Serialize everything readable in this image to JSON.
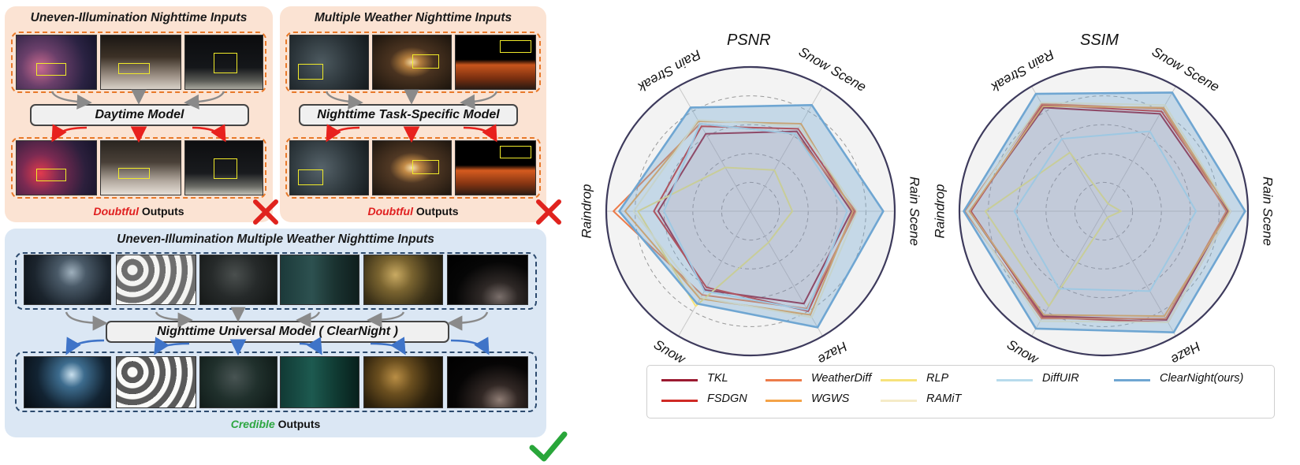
{
  "panels": {
    "uneven": {
      "title": "Uneven-Illumination Nighttime Inputs",
      "model": "Daytime Model",
      "outputs_em": "Doubtful",
      "outputs_rest": "Outputs"
    },
    "weather": {
      "title": "Multiple Weather Nighttime Inputs",
      "model": "Nighttime Task-Specific Model",
      "outputs_em": "Doubtful",
      "outputs_rest": "Outputs"
    },
    "universal": {
      "title": "Uneven-Illumination Multiple Weather Nighttime Inputs",
      "model": "Nighttime Universal Model ( ClearNight )",
      "outputs_em": "Credible",
      "outputs_rest": "Outputs"
    }
  },
  "colors": {
    "orange_panel": "#fbe3d3",
    "blue_panel": "#dbe7f4",
    "orange_dash": "#e8792a",
    "blue_dash": "#2c4a6e",
    "red_arrow": "#e8211d",
    "blue_arrow": "#3f74c8",
    "gray_arrow": "#8a8a8a",
    "cross": "#e0231e",
    "check": "#29a63a",
    "doubtful": "#e02020",
    "credible": "#2ca640"
  },
  "status_icons": [
    "cross-icon",
    "cross-icon",
    "check-icon"
  ],
  "chart_data": [
    {
      "type": "radar",
      "title": "PSNR",
      "axes": [
        "Rain Scene",
        "Snow Scene",
        "Rain Streak",
        "Raindrop",
        "Snow",
        "Haze"
      ],
      "grid": "dashed concentric circles",
      "series": [
        {
          "name": "TKL",
          "values": [
            0.7,
            0.64,
            0.62,
            0.64,
            0.63,
            0.74
          ]
        },
        {
          "name": "FSDGN",
          "values": [
            0.72,
            0.66,
            0.68,
            0.67,
            0.61,
            0.8
          ]
        },
        {
          "name": "WeatherDiff",
          "values": [
            0.73,
            0.62,
            0.7,
            0.95,
            0.67,
            0.78
          ]
        },
        {
          "name": "WGWS",
          "values": [
            0.71,
            0.7,
            0.72,
            0.87,
            0.7,
            0.83
          ]
        },
        {
          "name": "RLP",
          "values": [
            0.29,
            0.33,
            0.35,
            0.78,
            0.76,
            0.25
          ]
        },
        {
          "name": "RAMiT",
          "values": [
            0.74,
            0.68,
            0.73,
            0.81,
            0.69,
            0.85
          ]
        },
        {
          "name": "DiffUIR",
          "values": [
            0.67,
            0.62,
            0.7,
            0.6,
            0.64,
            0.79
          ]
        },
        {
          "name": "ClearNight(ours)",
          "values": [
            0.92,
            0.85,
            0.83,
            0.91,
            0.74,
            0.93
          ]
        }
      ]
    },
    {
      "type": "radar",
      "title": "SSIM",
      "axes": [
        "Rain Scene",
        "Snow Scene",
        "Rain Streak",
        "Raindrop",
        "Snow",
        "Haze"
      ],
      "grid": "dashed concentric circles",
      "series": [
        {
          "name": "TKL",
          "values": [
            0.86,
            0.78,
            0.83,
            0.93,
            0.84,
            0.87
          ]
        },
        {
          "name": "FSDGN",
          "values": [
            0.88,
            0.8,
            0.85,
            0.92,
            0.85,
            0.89
          ]
        },
        {
          "name": "WeatherDiff",
          "values": [
            0.85,
            0.82,
            0.86,
            0.96,
            0.86,
            0.86
          ]
        },
        {
          "name": "WGWS",
          "values": [
            0.87,
            0.83,
            0.84,
            0.93,
            0.83,
            0.84
          ]
        },
        {
          "name": "RLP",
          "values": [
            0.12,
            0.06,
            0.47,
            0.82,
            0.76,
            0.05
          ]
        },
        {
          "name": "RAMiT",
          "values": [
            0.88,
            0.85,
            0.87,
            0.95,
            0.88,
            0.89
          ]
        },
        {
          "name": "DiffUIR",
          "values": [
            0.64,
            0.64,
            0.58,
            0.62,
            0.62,
            0.64
          ]
        },
        {
          "name": "ClearNight(ours)",
          "values": [
            0.98,
            0.95,
            0.94,
            0.97,
            0.94,
            0.97
          ]
        }
      ]
    }
  ],
  "legend": [
    {
      "name": "TKL",
      "color": "#9b1a31"
    },
    {
      "name": "FSDGN",
      "color": "#cf2a25"
    },
    {
      "name": "WeatherDiff",
      "color": "#ec7b4a"
    },
    {
      "name": "WGWS",
      "color": "#f4a348"
    },
    {
      "name": "RLP",
      "color": "#f7e27a"
    },
    {
      "name": "RAMiT",
      "color": "#f5ebc8"
    },
    {
      "name": "DiffUIR",
      "color": "#b7dbec"
    },
    {
      "name": "ClearNight(ours)",
      "color": "#6fa6d2"
    }
  ]
}
